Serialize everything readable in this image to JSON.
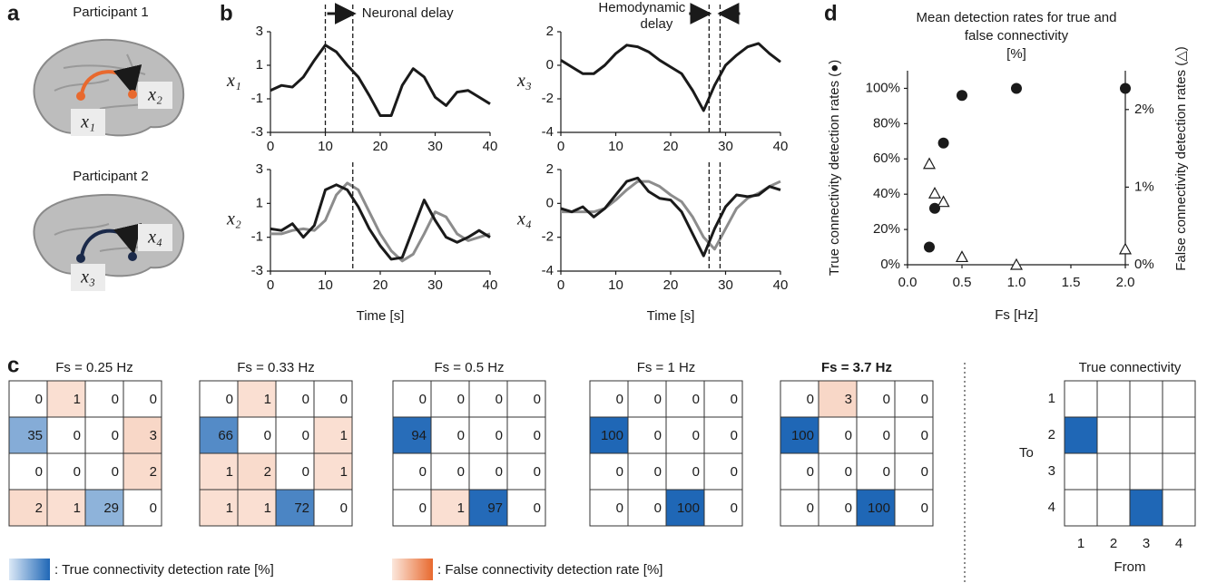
{
  "panel_labels": [
    "a",
    "b",
    "c",
    "d"
  ],
  "participants": [
    {
      "label": "Participant 1",
      "source": "x₁",
      "target": "x₂",
      "color": "#e8692e"
    },
    {
      "label": "Participant 2",
      "source": "x₃",
      "target": "x₄",
      "color": "#1b2a4a"
    }
  ],
  "chart_data": [
    {
      "type": "line",
      "ylabel": "x₁",
      "annotation": [
        "Neuronal delay"
      ],
      "x": [
        0,
        2,
        4,
        6,
        8,
        10,
        12,
        14,
        16,
        18,
        20,
        22,
        24,
        26,
        28,
        30,
        32,
        34,
        36,
        38,
        40
      ],
      "series": [
        {
          "color": "#1a1a1a",
          "values": [
            -0.5,
            -0.2,
            -0.3,
            0.3,
            1.3,
            2.2,
            1.8,
            1.0,
            0.3,
            -0.8,
            -2.0,
            -2.0,
            -0.2,
            0.8,
            0.3,
            -0.9,
            -1.4,
            -0.6,
            -0.5,
            -0.9,
            -1.3
          ]
        }
      ],
      "xlim": [
        0,
        40
      ],
      "xticks": [
        0,
        10,
        20,
        30,
        40
      ],
      "ylim": [
        -3,
        3
      ],
      "yticks": [
        -3,
        -1,
        1,
        3
      ],
      "markers": [
        10,
        15
      ]
    },
    {
      "type": "line",
      "ylabel": "x₃",
      "annotation": [
        "Hemodynamic",
        "delay"
      ],
      "x": [
        0,
        2,
        4,
        6,
        8,
        10,
        12,
        14,
        16,
        18,
        20,
        22,
        24,
        26,
        28,
        30,
        32,
        34,
        36,
        38,
        40
      ],
      "series": [
        {
          "color": "#1a1a1a",
          "values": [
            0.3,
            -0.1,
            -0.5,
            -0.5,
            0.0,
            0.7,
            1.2,
            1.1,
            0.8,
            0.3,
            -0.1,
            -0.5,
            -1.5,
            -2.7,
            -1.2,
            0.0,
            0.6,
            1.1,
            1.3,
            0.7,
            0.2
          ]
        }
      ],
      "xlim": [
        0,
        40
      ],
      "xticks": [
        0,
        10,
        20,
        30,
        40
      ],
      "ylim": [
        -4,
        2
      ],
      "yticks": [
        -4,
        -2,
        0,
        2
      ],
      "markers": [
        27,
        29
      ]
    },
    {
      "type": "line",
      "ylabel": "x₂",
      "xlabel": "Time [s]",
      "x": [
        0,
        2,
        4,
        6,
        8,
        10,
        12,
        14,
        16,
        18,
        20,
        22,
        24,
        26,
        28,
        30,
        32,
        34,
        36,
        38,
        40
      ],
      "series": [
        {
          "color": "#8c8c8c",
          "values": [
            -0.8,
            -0.8,
            -0.6,
            -0.5,
            -0.6,
            0.0,
            1.5,
            2.2,
            1.8,
            0.5,
            -0.8,
            -1.8,
            -2.4,
            -2.0,
            -0.8,
            0.5,
            0.2,
            -0.8,
            -1.2,
            -1.0,
            -0.8
          ]
        },
        {
          "color": "#1a1a1a",
          "values": [
            -0.5,
            -0.6,
            -0.2,
            -1.0,
            -0.3,
            1.8,
            2.1,
            1.8,
            0.8,
            -0.5,
            -1.5,
            -2.3,
            -2.2,
            -0.5,
            1.2,
            0.0,
            -1.0,
            -1.3,
            -1.0,
            -0.6,
            -1.0
          ]
        }
      ],
      "xlim": [
        0,
        40
      ],
      "xticks": [
        0,
        10,
        20,
        30,
        40
      ],
      "ylim": [
        -3,
        3
      ],
      "yticks": [
        -3,
        -1,
        1,
        3
      ],
      "markers": [
        15
      ]
    },
    {
      "type": "line",
      "ylabel": "x₄",
      "xlabel": "Time [s]",
      "x": [
        0,
        2,
        4,
        6,
        8,
        10,
        12,
        14,
        16,
        18,
        20,
        22,
        24,
        26,
        28,
        30,
        32,
        34,
        36,
        38,
        40
      ],
      "series": [
        {
          "color": "#8c8c8c",
          "values": [
            -0.5,
            -0.5,
            -0.5,
            -0.5,
            -0.3,
            0.2,
            0.8,
            1.3,
            1.3,
            1.0,
            0.5,
            0.1,
            -0.8,
            -2.0,
            -2.7,
            -1.5,
            -0.3,
            0.3,
            0.6,
            1.0,
            1.3
          ]
        },
        {
          "color": "#1a1a1a",
          "values": [
            -0.3,
            -0.5,
            -0.2,
            -0.8,
            -0.3,
            0.5,
            1.3,
            1.5,
            0.7,
            0.3,
            0.2,
            -0.5,
            -1.8,
            -3.1,
            -1.5,
            -0.2,
            0.5,
            0.4,
            0.5,
            1.0,
            0.8
          ]
        }
      ],
      "xlim": [
        0,
        40
      ],
      "xticks": [
        0,
        10,
        20,
        30,
        40
      ],
      "ylim": [
        -4,
        2
      ],
      "yticks": [
        -4,
        -2,
        0,
        2
      ],
      "markers": [
        27,
        29
      ]
    },
    {
      "type": "scatter",
      "title": [
        "Mean detection rates for true and",
        "false connectivity",
        "[%]"
      ],
      "xlabel": "Fs [Hz]",
      "ylabel": "True connectivity detection rates (●)",
      "y2label": "False connectivity detection rates (△)",
      "series": [
        {
          "marker": "circle",
          "color": "#1a1a1a",
          "x": [
            0.2,
            0.25,
            0.33,
            0.5,
            1,
            2
          ],
          "values": [
            10,
            32,
            69,
            96,
            100,
            100
          ]
        },
        {
          "marker": "triangle",
          "axis": "y2",
          "color": "#ffffff",
          "x": [
            0.2,
            0.25,
            0.33,
            0.5,
            1,
            2
          ],
          "values": [
            1.3,
            0.92,
            0.81,
            0.1,
            0,
            0.2
          ]
        }
      ],
      "xlim": [
        0,
        2
      ],
      "xticks": [
        {
          "value": 0,
          "label": "0.0"
        },
        {
          "value": 0.5,
          "label": "0.5"
        },
        {
          "value": 1,
          "label": "1.0"
        },
        {
          "value": 1.5,
          "label": "1.5"
        },
        {
          "value": 2,
          "label": "2.0"
        }
      ],
      "ylim": [
        0,
        110
      ],
      "yticks": [
        {
          "value": 0,
          "label": "0%"
        },
        {
          "value": 20,
          "label": "20%"
        },
        {
          "value": 40,
          "label": "40%"
        },
        {
          "value": 60,
          "label": "60%"
        },
        {
          "value": 80,
          "label": "80%"
        },
        {
          "value": 100,
          "label": "100%"
        }
      ],
      "y2lim": [
        0,
        2.5
      ],
      "y2ticks": [
        {
          "value": 0,
          "label": "0%"
        },
        {
          "value": 1,
          "label": "1%"
        },
        {
          "value": 2,
          "label": "2%"
        }
      ]
    },
    {
      "type": "heatmap",
      "title": "Fs = 0.25 Hz",
      "values": [
        [
          0,
          1,
          0,
          0
        ],
        [
          35,
          0,
          0,
          3
        ],
        [
          0,
          0,
          0,
          2
        ],
        [
          2,
          1,
          29,
          0
        ]
      ]
    },
    {
      "type": "heatmap",
      "title": "Fs = 0.33 Hz",
      "values": [
        [
          0,
          1,
          0,
          0
        ],
        [
          66,
          0,
          0,
          1
        ],
        [
          1,
          2,
          0,
          1
        ],
        [
          1,
          1,
          72,
          0
        ]
      ]
    },
    {
      "type": "heatmap",
      "title": "Fs = 0.5 Hz",
      "values": [
        [
          0,
          0,
          0,
          0
        ],
        [
          94,
          0,
          0,
          0
        ],
        [
          0,
          0,
          0,
          0
        ],
        [
          0,
          1,
          97,
          0
        ]
      ]
    },
    {
      "type": "heatmap",
      "title": "Fs = 1 Hz",
      "values": [
        [
          0,
          0,
          0,
          0
        ],
        [
          100,
          0,
          0,
          0
        ],
        [
          0,
          0,
          0,
          0
        ],
        [
          0,
          0,
          100,
          0
        ]
      ]
    },
    {
      "type": "heatmap",
      "title": "Fs = 3.7 Hz",
      "title_bold": true,
      "values": [
        [
          0,
          3,
          0,
          0
        ],
        [
          100,
          0,
          0,
          0
        ],
        [
          0,
          0,
          0,
          0
        ],
        [
          0,
          0,
          100,
          0
        ]
      ]
    },
    {
      "type": "connectivity",
      "title": "True connectivity",
      "xlabel": "From",
      "ylabel": "To",
      "labels": [
        "1",
        "2",
        "3",
        "4"
      ],
      "edges": [
        {
          "from": 1,
          "to": 2
        },
        {
          "from": 3,
          "to": 4
        }
      ],
      "true_color": "#1f67b6",
      "false_color": "#ee9a72"
    }
  ],
  "legend": [
    ": True connectivity detection rate [%]",
    ": False connectivity detection rate [%]"
  ]
}
